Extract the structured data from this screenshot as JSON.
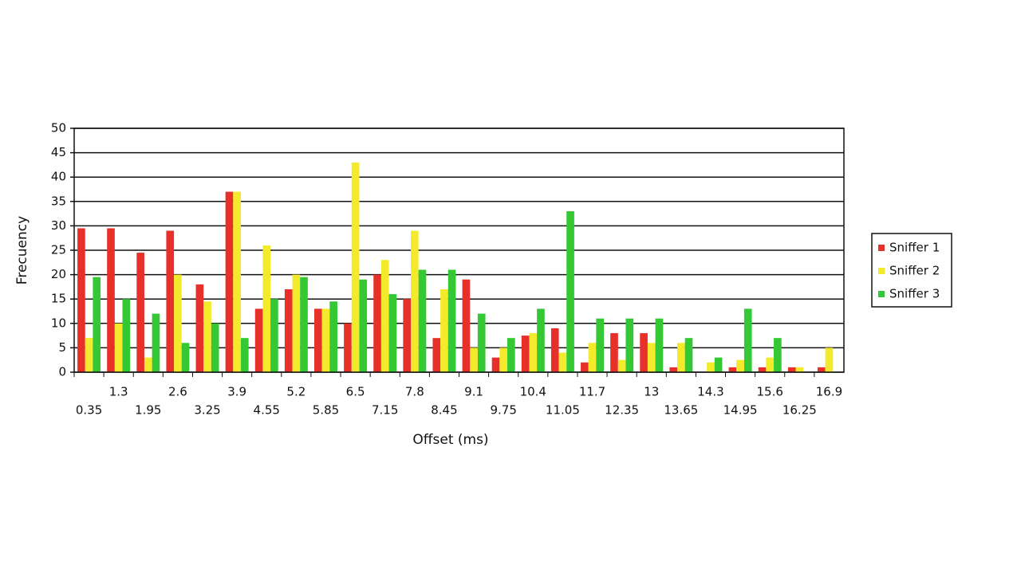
{
  "chart_data": {
    "type": "bar",
    "xlabel": "Offset (ms)",
    "ylabel": "Frecuency",
    "categories": [
      "0.35",
      "1.3",
      "1.95",
      "2.6",
      "3.25",
      "3.9",
      "4.55",
      "5.2",
      "5.85",
      "6.5",
      "7.15",
      "7.8",
      "8.45",
      "9.1",
      "9.75",
      "10.4",
      "11.05",
      "11.7",
      "12.35",
      "13",
      "13.65",
      "14.3",
      "14.95",
      "15.6",
      "16.25",
      "16.9"
    ],
    "series": [
      {
        "name": "Sniffer 1",
        "color": "#e8302a",
        "values": [
          29.5,
          29.5,
          24.5,
          29,
          18,
          37,
          13,
          17,
          13,
          10,
          20,
          15,
          7,
          19,
          3,
          7.5,
          9,
          2,
          8,
          8,
          1,
          0,
          1,
          1,
          1,
          1
        ]
      },
      {
        "name": "Sniffer 2",
        "color": "#f2ea2a",
        "values": [
          7,
          10,
          3,
          20,
          14.5,
          37,
          26,
          20,
          13,
          43,
          23,
          29,
          17,
          5,
          5,
          8,
          4,
          6,
          2.5,
          6,
          6,
          2,
          2.5,
          3,
          1,
          5
        ]
      },
      {
        "name": "Sniffer 3",
        "color": "#34c834",
        "values": [
          19.5,
          15,
          12,
          6,
          10,
          7,
          15,
          19.5,
          14.5,
          19,
          16,
          21,
          21,
          12,
          7,
          13,
          33,
          11,
          11,
          11,
          7,
          3,
          13,
          7,
          0,
          0
        ]
      }
    ],
    "ylim": [
      0,
      50
    ],
    "yticks": [
      0,
      5,
      10,
      15,
      20,
      25,
      30,
      35,
      40,
      45,
      50
    ],
    "grid": true,
    "legend": "right"
  }
}
